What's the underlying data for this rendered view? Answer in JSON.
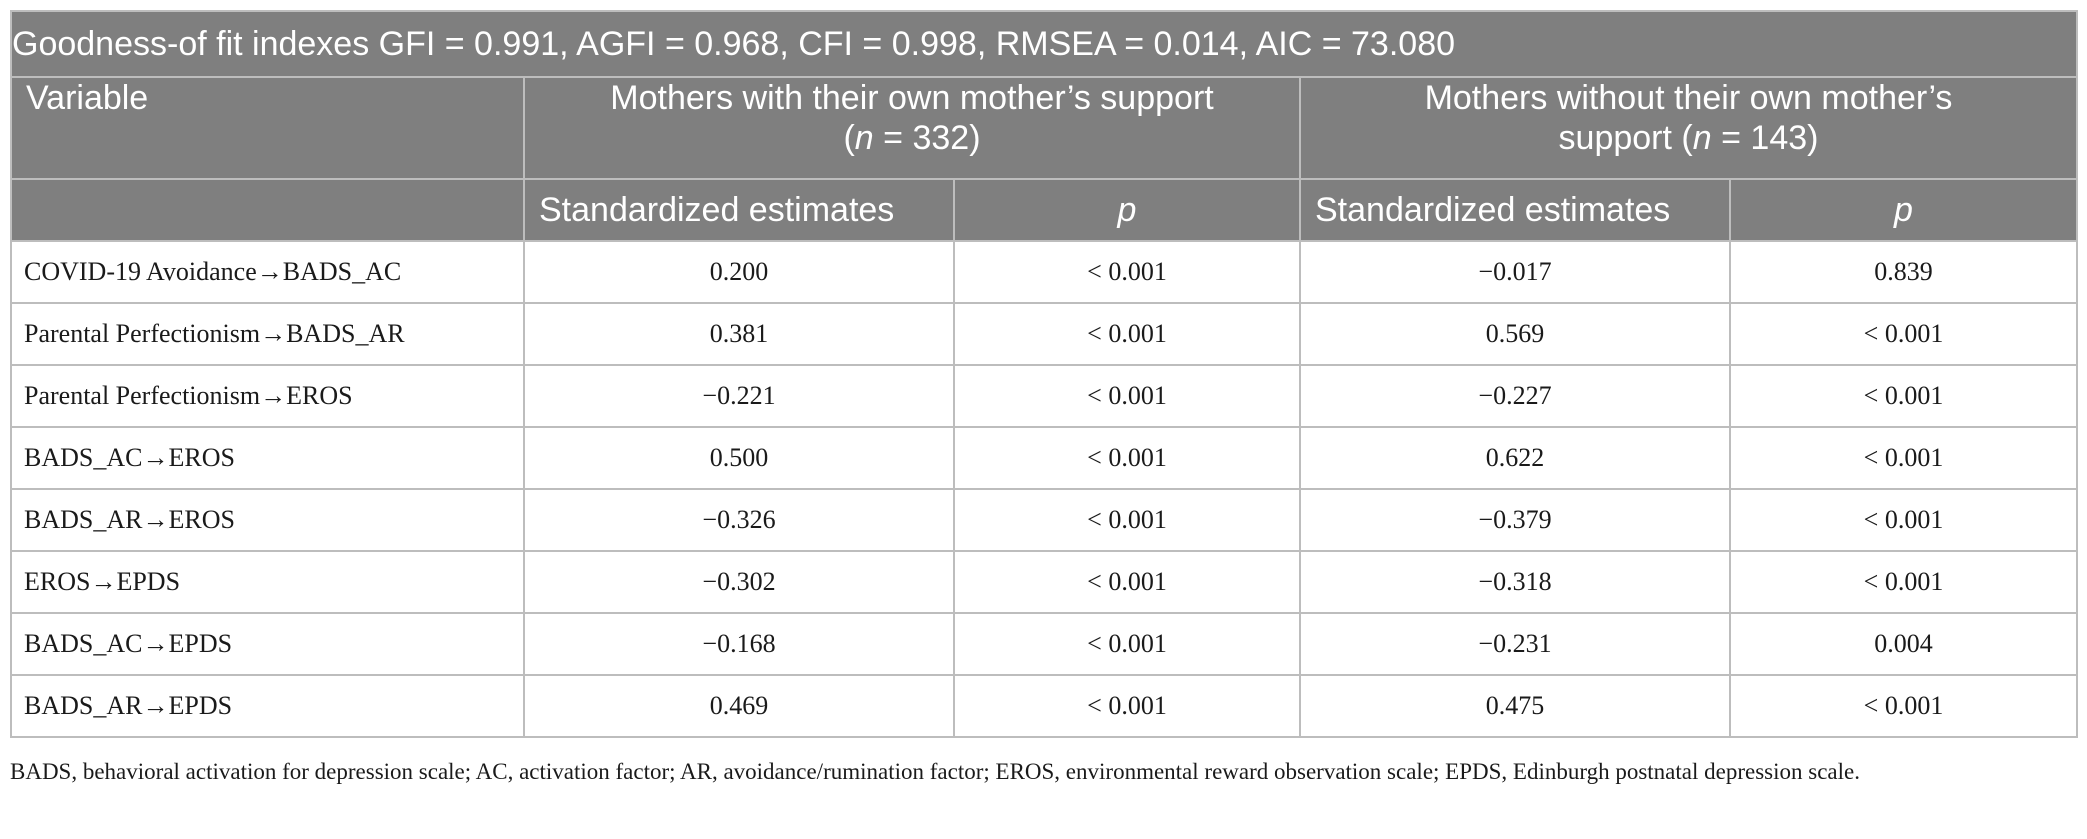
{
  "table": {
    "gof_line": "Goodness-of fit indexes GFI = 0.991, AGFI = 0.968, CFI = 0.998, RMSEA = 0.014, AIC = 73.080",
    "headers": {
      "variable": "Variable",
      "group_with_line1": "Mothers with their own mother’s support",
      "group_with_line2_open": "(",
      "group_with_n": "n",
      "group_with_line2_rest": " = 332)",
      "group_without_line1": "Mothers without their own mother’s",
      "group_without_line2_pre": "support (",
      "group_without_n": "n",
      "group_without_line2_rest": " = 143)",
      "estimates": "Standardized estimates",
      "p": "p"
    },
    "rows": [
      {
        "variable": "COVID-19 Avoidance→BADS_AC",
        "with_est": "0.200",
        "with_p": "< 0.001",
        "without_est": "−0.017",
        "without_p": "0.839"
      },
      {
        "variable": "Parental Perfectionism→BADS_AR",
        "with_est": "0.381",
        "with_p": "< 0.001",
        "without_est": "0.569",
        "without_p": "< 0.001"
      },
      {
        "variable": "Parental Perfectionism→EROS",
        "with_est": "−0.221",
        "with_p": "< 0.001",
        "without_est": "−0.227",
        "without_p": "< 0.001"
      },
      {
        "variable": "BADS_AC→EROS",
        "with_est": "0.500",
        "with_p": "< 0.001",
        "without_est": "0.622",
        "without_p": "< 0.001"
      },
      {
        "variable": "BADS_AR→EROS",
        "with_est": "−0.326",
        "with_p": "< 0.001",
        "without_est": "−0.379",
        "without_p": "< 0.001"
      },
      {
        "variable": "EROS→EPDS",
        "with_est": "−0.302",
        "with_p": "< 0.001",
        "without_est": "−0.318",
        "without_p": "< 0.001"
      },
      {
        "variable": "BADS_AC→EPDS",
        "with_est": "−0.168",
        "with_p": "< 0.001",
        "without_est": "−0.231",
        "without_p": "0.004"
      },
      {
        "variable": "BADS_AR→EPDS",
        "with_est": "0.469",
        "with_p": "< 0.001",
        "without_est": "0.475",
        "without_p": "< 0.001"
      }
    ]
  },
  "footnote": "BADS, behavioral activation for depression scale; AC, activation factor; AR, avoidance/rumination factor; EROS, environmental reward observation scale; EPDS, Edinburgh postnatal depression scale."
}
